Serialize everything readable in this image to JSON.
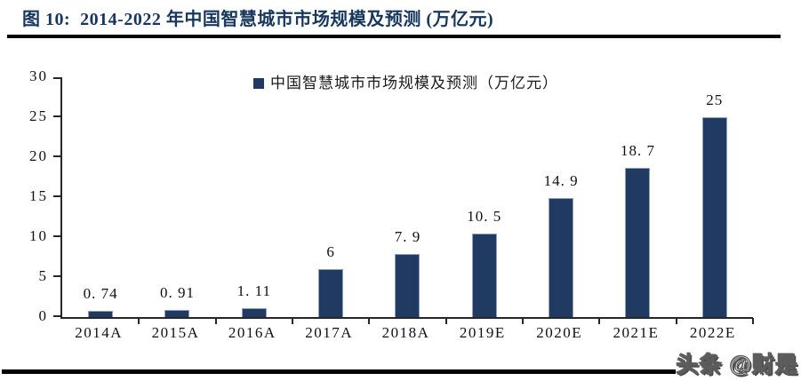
{
  "figure": {
    "title": "图 10:  2014-2022 年中国智慧城市市场规模及预测 (万亿元)"
  },
  "watermark": "头条 @财是",
  "colors": {
    "title_navy": "#17375E",
    "bar_fill": "#203A62",
    "bar_border": "#8DA0BC",
    "axis": "#262626",
    "rule_black": "#000000"
  },
  "chart_data": {
    "type": "bar",
    "title": "中国智慧城市市场规模及预测（万亿元）",
    "legend": [
      "中国智慧城市市场规模及预测（万亿元）"
    ],
    "legend_position": "top-center",
    "categories": [
      "2014A",
      "2015A",
      "2016A",
      "2017A",
      "2018A",
      "2019E",
      "2020E",
      "2021E",
      "2022E"
    ],
    "values": [
      0.74,
      0.91,
      1.11,
      6,
      7.9,
      10.5,
      14.9,
      18.7,
      25
    ],
    "value_labels": [
      "0. 74",
      "0. 91",
      "1. 11",
      "6",
      "7. 9",
      "10. 5",
      "14. 9",
      "18. 7",
      "25"
    ],
    "xlabel": "",
    "ylabel": "",
    "ylim": [
      0,
      30
    ],
    "yticks": [
      0,
      5,
      10,
      15,
      20,
      25,
      30
    ],
    "grid": false
  }
}
